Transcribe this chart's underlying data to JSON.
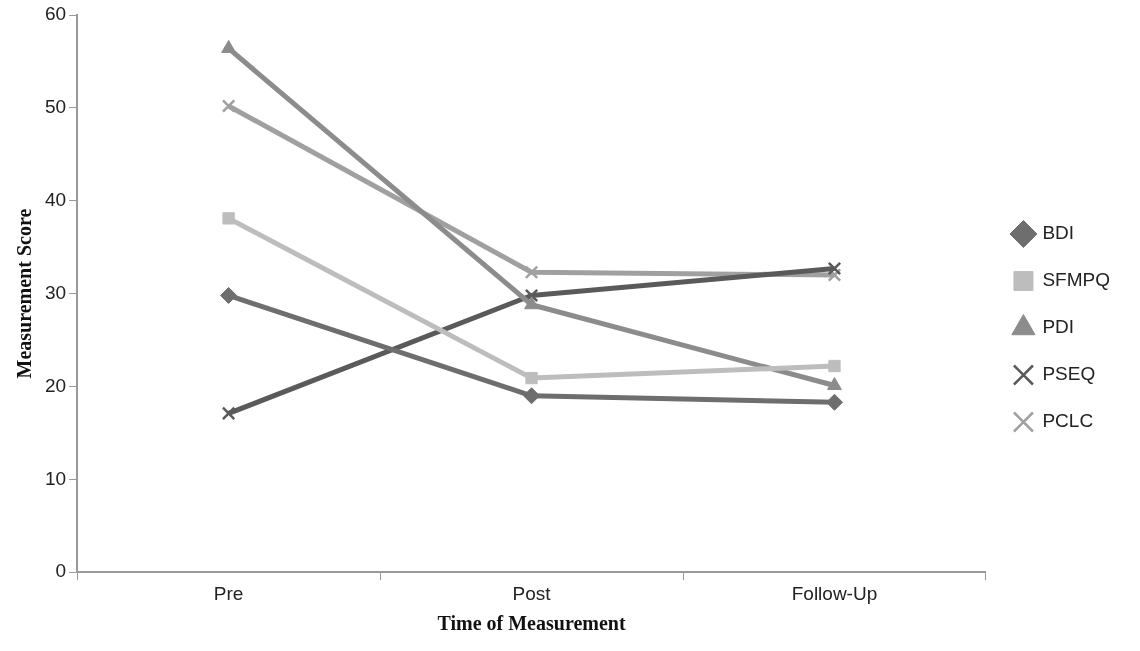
{
  "chart_data": {
    "type": "line",
    "xlabel": "Time of Measurement",
    "ylabel": "Measurement Score",
    "categories": [
      "Pre",
      "Post",
      "Follow-Up"
    ],
    "ylim": [
      0,
      60
    ],
    "yticks": [
      0,
      10,
      20,
      30,
      40,
      50,
      60
    ],
    "grid": false,
    "legend": "right",
    "line_style": "solid",
    "series": [
      {
        "name": "BDI",
        "color": "#6e6e6e",
        "marker": "diamond",
        "values": [
          29.8,
          19.0,
          18.3
        ]
      },
      {
        "name": "SFMPQ",
        "color": "#bdbdbd",
        "marker": "square",
        "values": [
          38.1,
          20.9,
          22.2
        ]
      },
      {
        "name": "PDI",
        "color": "#8c8c8c",
        "marker": "triangle",
        "values": [
          56.4,
          28.8,
          20.1
        ]
      },
      {
        "name": "PSEQ",
        "color": "#5a5a5a",
        "marker": "cross",
        "values": [
          17.1,
          29.8,
          32.7
        ]
      },
      {
        "name": "PCLC",
        "color": "#a0a0a0",
        "marker": "cross",
        "values": [
          50.2,
          32.3,
          32.0
        ]
      }
    ]
  }
}
